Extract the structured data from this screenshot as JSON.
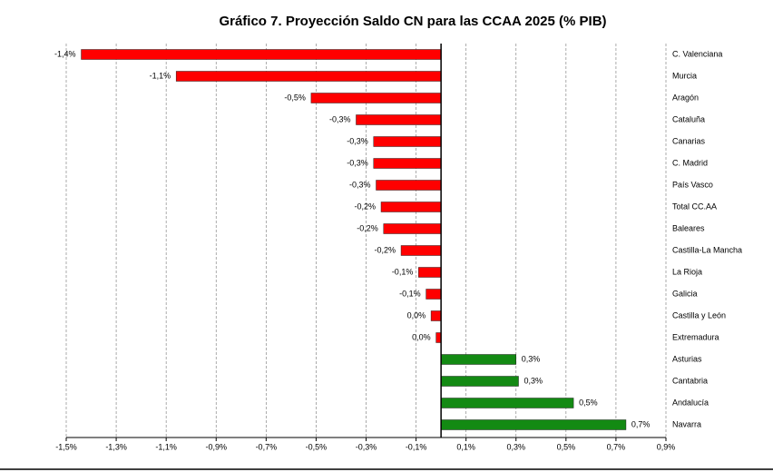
{
  "chart_data": {
    "type": "hbar",
    "title": "Gráfico 7. Proyección Saldo CN para las CCAA 2025 (% PIB)",
    "categories": [
      "C. Valenciana",
      "Murcia",
      "Aragón",
      "Cataluña",
      "Canarias",
      "C. Madrid",
      "País Vasco",
      "Total CC.AA",
      "Baleares",
      "Castilla-La Mancha",
      "La Rioja",
      "Galicia",
      "Castilla y León",
      "Extremadura",
      "Asturias",
      "Cantabria",
      "Andalucía",
      "Navarra"
    ],
    "values": [
      -1.44,
      -1.06,
      -0.52,
      -0.34,
      -0.27,
      -0.27,
      -0.26,
      -0.24,
      -0.23,
      -0.16,
      -0.09,
      -0.06,
      -0.04,
      -0.02,
      0.3,
      0.31,
      0.53,
      0.74
    ],
    "value_labels": [
      "-1,4%",
      "-1,1%",
      "-0,5%",
      "-0,3%",
      "-0,3%",
      "-0,3%",
      "-0,3%",
      "-0,2%",
      "-0,2%",
      "-0,2%",
      "-0,1%",
      "-0,1%",
      "0,0%",
      "0,0%",
      "0,3%",
      "0,3%",
      "0,5%",
      "0,7%"
    ],
    "negative_color": "#ff0000",
    "positive_color": "#138a13",
    "xlim": [
      -1.5,
      0.9
    ],
    "xticks": [
      {
        "value": -1.5,
        "label": "-1,5%"
      },
      {
        "value": -1.3,
        "label": "-1,3%"
      },
      {
        "value": -1.1,
        "label": "-1,1%"
      },
      {
        "value": -0.9,
        "label": "-0,9%"
      },
      {
        "value": -0.7,
        "label": "-0,7%"
      },
      {
        "value": -0.5,
        "label": "-0,5%"
      },
      {
        "value": -0.3,
        "label": "-0,3%"
      },
      {
        "value": -0.1,
        "label": "-0,1%"
      },
      {
        "value": 0.1,
        "label": "0,1%"
      },
      {
        "value": 0.3,
        "label": "0,3%"
      },
      {
        "value": 0.5,
        "label": "0,5%"
      },
      {
        "value": 0.7,
        "label": "0,7%"
      },
      {
        "value": 0.9,
        "label": "0,9%"
      }
    ],
    "grid": true
  }
}
